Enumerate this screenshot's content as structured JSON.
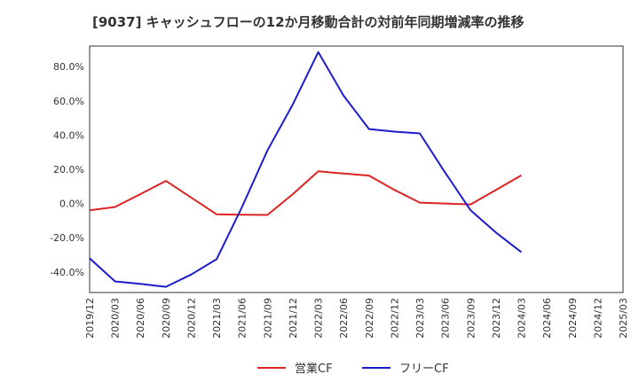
{
  "chart_data": {
    "type": "line",
    "title": "[9037]  キャッシュフローの12か月移動合計の対前年同期増減率の推移",
    "xlabel": "",
    "ylabel": "",
    "ylim": [
      -52,
      92
    ],
    "yticks": [
      -40,
      -20,
      0,
      20,
      40,
      60,
      80
    ],
    "ytick_labels": [
      "-40.0%",
      "-20.0%",
      "0.0%",
      "20.0%",
      "40.0%",
      "60.0%",
      "80.0%"
    ],
    "x": [
      "2019/12",
      "2020/03",
      "2020/06",
      "2020/09",
      "2020/12",
      "2021/03",
      "2021/06",
      "2021/09",
      "2021/12",
      "2022/03",
      "2022/06",
      "2022/09",
      "2022/12",
      "2023/03",
      "2023/06",
      "2023/09",
      "2023/12",
      "2024/03",
      "2024/06",
      "2024/09",
      "2024/12",
      "2025/03"
    ],
    "grid": true,
    "legend_position": "bottom",
    "series": [
      {
        "name": "営業CF",
        "color": "#dd2222",
        "values": [
          -4.0,
          -2.0,
          5.5,
          13.2,
          3.5,
          -6.3,
          -6.5,
          -6.7,
          5.5,
          18.8,
          17.5,
          16.3,
          8.0,
          0.5,
          0.0,
          -0.5,
          8.0,
          16.5,
          null,
          null,
          null,
          null
        ]
      },
      {
        "name": "フリーCF",
        "color": "#1c1ccc",
        "values": [
          -32.0,
          -45.5,
          -47.0,
          -48.7,
          -41.5,
          -32.5,
          -2.0,
          31.0,
          58.0,
          88.5,
          63.0,
          43.5,
          42.0,
          41.0,
          18.0,
          -4.0,
          -17.0,
          -28.5,
          null,
          null,
          null,
          null
        ]
      }
    ]
  }
}
